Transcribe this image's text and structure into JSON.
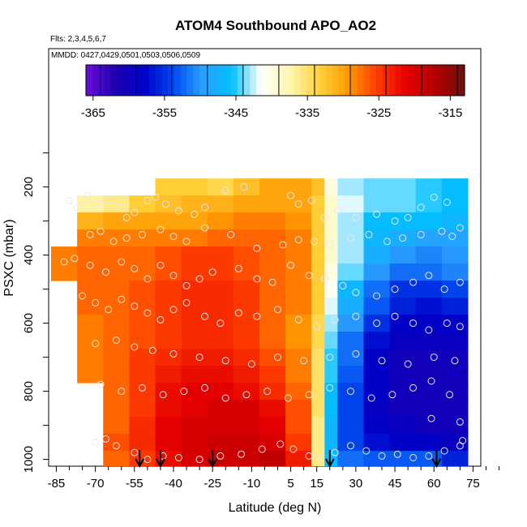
{
  "chart_data": {
    "type": "heatmap",
    "title": "ATOM4 Southbound APO_AO2",
    "flights_label": "Flts: 2,3,4,5,6,7",
    "dates_label": "MMDD: 0427,0429,0501,0503,0506,0509",
    "xlabel": "Latitude (deg N)",
    "ylabel": "PSXC (mbar)",
    "xlim": [
      -87,
      87
    ],
    "ylim": [
      1020,
      100
    ],
    "x_ticks": [
      -85,
      -70,
      -55,
      -40,
      -25,
      -10,
      5,
      15,
      30,
      45,
      60,
      75
    ],
    "y_ticks": [
      200,
      400,
      600,
      800,
      1000
    ],
    "colorbar": {
      "range": [
        -366,
        -313
      ],
      "ticks": [
        -365,
        -355,
        -345,
        -335,
        -325,
        -315
      ],
      "stops": [
        "#6a0fd8",
        "#1e00b0",
        "#0000c8",
        "#0048f0",
        "#2aa0ff",
        "#00c0ff",
        "#ffffff",
        "#fff7b0",
        "#ffd23c",
        "#ff9a00",
        "#ff3c00",
        "#e60000",
        "#b40000",
        "#701010"
      ]
    },
    "arrows_lat": [
      -53,
      -45,
      -25,
      20,
      61
    ],
    "latitude_bins": [
      -87,
      -77,
      -67,
      -57,
      -47,
      -37,
      -27,
      -17,
      -7,
      3,
      13,
      18,
      23,
      33,
      43,
      53,
      63,
      73
    ],
    "pressure_levels": [
      200,
      250,
      300,
      350,
      400,
      450,
      500,
      550,
      600,
      650,
      700,
      750,
      800,
      850,
      900,
      950,
      1000
    ],
    "values": [
      [
        null,
        null,
        null,
        null,
        -333,
        -333,
        -334,
        -332,
        -330,
        -330,
        -332,
        -340,
        -343,
        -344,
        -344,
        -345,
        -346
      ],
      [
        null,
        -337,
        -336,
        -333,
        -332,
        -331,
        -331,
        -330,
        -330,
        -330,
        -333,
        -339,
        -342,
        -344,
        -344,
        -345,
        -346
      ],
      [
        null,
        -331,
        -330,
        -330,
        -330,
        -330,
        -329,
        -328,
        -328,
        -329,
        -333,
        -339,
        -343,
        -346,
        -346,
        -346,
        -347
      ],
      [
        null,
        -328,
        -328,
        -328,
        -328,
        -328,
        -327,
        -327,
        -327,
        -328,
        -333,
        -339,
        -343,
        -347,
        -348,
        -349,
        -349
      ],
      [
        -328,
        -327,
        -327,
        -327,
        -326,
        -325,
        -325,
        -326,
        -327,
        -328,
        -333,
        -339,
        -343,
        -348,
        -350,
        -351,
        -350
      ],
      [
        -328,
        -327,
        -327,
        -327,
        -326,
        -325,
        -325,
        -326,
        -327,
        -328,
        -333,
        -340,
        -344,
        -350,
        -352,
        -352,
        -351
      ],
      [
        null,
        -327,
        -327,
        -326,
        -325,
        -324,
        -324,
        -325,
        -327,
        -328,
        -333,
        -341,
        -347,
        -352,
        -355,
        -355,
        -354
      ],
      [
        null,
        -327,
        -327,
        -326,
        -325,
        -324,
        -324,
        -325,
        -327,
        -328,
        -333,
        -342,
        -348,
        -353,
        -356,
        -357,
        -356
      ],
      [
        null,
        -328,
        -327,
        -326,
        -325,
        -324,
        -324,
        -325,
        -327,
        -329,
        -334,
        -343,
        -350,
        -355,
        -358,
        -358,
        -358
      ],
      [
        null,
        -328,
        -327,
        -326,
        -325,
        -324,
        -324,
        -325,
        -327,
        -329,
        -334,
        -344,
        -352,
        -357,
        -359,
        -359,
        -359
      ],
      [
        null,
        -328,
        -327,
        -325,
        -324,
        -323,
        -323,
        -324,
        -326,
        -328,
        -335,
        -345,
        -352,
        -358,
        -360,
        -360,
        -360
      ],
      [
        null,
        -328,
        -327,
        -325,
        -323,
        -322,
        -322,
        -323,
        -325,
        -328,
        -335,
        -345,
        -353,
        -358,
        -360,
        -360,
        -360
      ],
      [
        null,
        null,
        -327,
        -325,
        -322,
        -321,
        -321,
        -322,
        -324,
        -327,
        -335,
        -346,
        -354,
        -358,
        -360,
        -360,
        -360
      ],
      [
        null,
        null,
        -327,
        -325,
        -322,
        -321,
        -320,
        -320,
        -322,
        -326,
        -335,
        -346,
        -354,
        -359,
        -360,
        -360,
        -360
      ],
      [
        null,
        null,
        -327,
        -324,
        -321,
        -320,
        -320,
        -320,
        -321,
        -326,
        -336,
        -347,
        -354,
        -358,
        -359,
        -360,
        -360
      ],
      [
        null,
        null,
        -326,
        -324,
        -321,
        -320,
        -319,
        -319,
        -320,
        -325,
        -336,
        -347,
        -354,
        -357,
        -358,
        -358,
        -359
      ],
      [
        null,
        null,
        -327,
        -325,
        -322,
        -320,
        -319,
        -319,
        -318,
        -323,
        -336,
        -346,
        -352,
        -353,
        -353,
        -353,
        -356
      ]
    ],
    "samples": [
      [
        -80,
        240
      ],
      [
        -77,
        260
      ],
      [
        -73,
        225
      ],
      [
        -68,
        250
      ],
      [
        -65,
        240
      ],
      [
        -60,
        260
      ],
      [
        -58,
        290
      ],
      [
        -55,
        275
      ],
      [
        -50,
        240
      ],
      [
        -47,
        230
      ],
      [
        -43,
        250
      ],
      [
        -38,
        270
      ],
      [
        -32,
        280
      ],
      [
        -28,
        260
      ],
      [
        -20,
        210
      ],
      [
        -13,
        200
      ],
      [
        5,
        225
      ],
      [
        8,
        250
      ],
      [
        13,
        240
      ],
      [
        18,
        290
      ],
      [
        23,
        270
      ],
      [
        30,
        290
      ],
      [
        38,
        280
      ],
      [
        45,
        300
      ],
      [
        50,
        290
      ],
      [
        55,
        260
      ],
      [
        60,
        230
      ],
      [
        65,
        245
      ],
      [
        70,
        320
      ],
      [
        -72,
        340
      ],
      [
        -68,
        330
      ],
      [
        -63,
        360
      ],
      [
        -58,
        350
      ],
      [
        -52,
        340
      ],
      [
        -45,
        325
      ],
      [
        -40,
        345
      ],
      [
        -35,
        360
      ],
      [
        -28,
        320
      ],
      [
        -18,
        340
      ],
      [
        -8,
        380
      ],
      [
        2,
        370
      ],
      [
        8,
        355
      ],
      [
        14,
        360
      ],
      [
        20,
        370
      ],
      [
        28,
        350
      ],
      [
        35,
        340
      ],
      [
        42,
        360
      ],
      [
        48,
        350
      ],
      [
        55,
        340
      ],
      [
        63,
        330
      ],
      [
        67,
        345
      ],
      [
        -82,
        420
      ],
      [
        -78,
        410
      ],
      [
        -72,
        430
      ],
      [
        -66,
        450
      ],
      [
        -60,
        420
      ],
      [
        -55,
        440
      ],
      [
        -50,
        470
      ],
      [
        -45,
        430
      ],
      [
        -40,
        460
      ],
      [
        -35,
        490
      ],
      [
        -30,
        470
      ],
      [
        -25,
        450
      ],
      [
        -15,
        440
      ],
      [
        -8,
        470
      ],
      [
        -2,
        480
      ],
      [
        5,
        430
      ],
      [
        12,
        460
      ],
      [
        18,
        470
      ],
      [
        25,
        490
      ],
      [
        30,
        510
      ],
      [
        38,
        520
      ],
      [
        45,
        500
      ],
      [
        52,
        480
      ],
      [
        58,
        460
      ],
      [
        64,
        500
      ],
      [
        70,
        480
      ],
      [
        -75,
        520
      ],
      [
        -70,
        540
      ],
      [
        -65,
        560
      ],
      [
        -60,
        530
      ],
      [
        -55,
        550
      ],
      [
        -50,
        570
      ],
      [
        -45,
        590
      ],
      [
        -40,
        560
      ],
      [
        -35,
        540
      ],
      [
        -28,
        580
      ],
      [
        -22,
        600
      ],
      [
        -15,
        570
      ],
      [
        -8,
        580
      ],
      [
        0,
        560
      ],
      [
        8,
        590
      ],
      [
        15,
        610
      ],
      [
        22,
        590
      ],
      [
        30,
        580
      ],
      [
        38,
        600
      ],
      [
        45,
        580
      ],
      [
        52,
        600
      ],
      [
        58,
        620
      ],
      [
        65,
        600
      ],
      [
        70,
        610
      ],
      [
        -70,
        660
      ],
      [
        -62,
        650
      ],
      [
        -55,
        670
      ],
      [
        -48,
        680
      ],
      [
        -40,
        690
      ],
      [
        -30,
        700
      ],
      [
        -20,
        710
      ],
      [
        -10,
        720
      ],
      [
        0,
        700
      ],
      [
        10,
        710
      ],
      [
        20,
        700
      ],
      [
        30,
        690
      ],
      [
        40,
        710
      ],
      [
        50,
        720
      ],
      [
        60,
        700
      ],
      [
        68,
        710
      ],
      [
        -68,
        780
      ],
      [
        -60,
        800
      ],
      [
        -52,
        790
      ],
      [
        -44,
        810
      ],
      [
        -36,
        800
      ],
      [
        -28,
        790
      ],
      [
        -20,
        820
      ],
      [
        -12,
        810
      ],
      [
        -4,
        800
      ],
      [
        4,
        820
      ],
      [
        12,
        810
      ],
      [
        20,
        790
      ],
      [
        28,
        800
      ],
      [
        36,
        820
      ],
      [
        44,
        810
      ],
      [
        52,
        790
      ],
      [
        59,
        770
      ],
      [
        66,
        810
      ],
      [
        -70,
        950
      ],
      [
        -66,
        940
      ],
      [
        -62,
        960
      ],
      [
        -55,
        980
      ],
      [
        -50,
        1000
      ],
      [
        -44,
        990
      ],
      [
        -38,
        995
      ],
      [
        -30,
        1000
      ],
      [
        -22,
        990
      ],
      [
        -14,
        985
      ],
      [
        -6,
        970
      ],
      [
        1,
        955
      ],
      [
        6,
        970
      ],
      [
        12,
        990
      ],
      [
        16,
        995
      ],
      [
        22,
        980
      ],
      [
        28,
        960
      ],
      [
        34,
        975
      ],
      [
        40,
        990
      ],
      [
        46,
        985
      ],
      [
        52,
        995
      ],
      [
        58,
        990
      ],
      [
        64,
        975
      ],
      [
        70,
        960
      ],
      [
        71,
        945
      ],
      [
        70,
        890
      ],
      [
        59,
        880
      ]
    ]
  }
}
